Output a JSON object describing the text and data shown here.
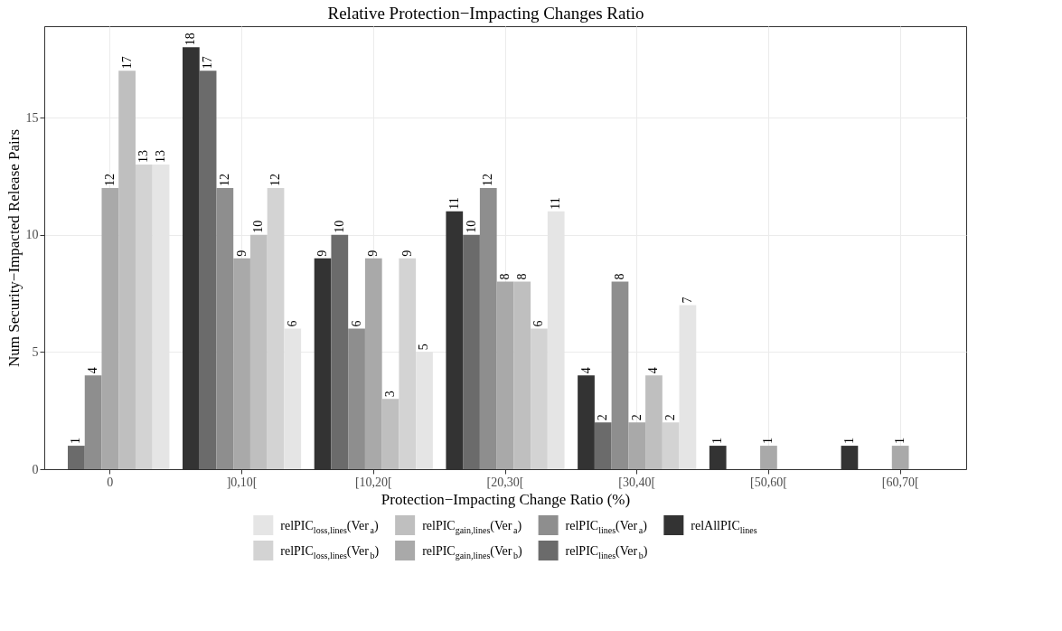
{
  "chart_data": {
    "type": "bar",
    "title": "Relative Protection−Impacting Changes Ratio",
    "xlabel": "Protection−Impacting Change Ratio (%)",
    "ylabel": "Num Security−Impacted Release Pairs",
    "categories": [
      "0",
      "]0,10[",
      "[10,20[",
      "[20,30[",
      "[30,40[",
      "[50,60[",
      "[60,70["
    ],
    "series": [
      {
        "name": "relAllPIC$_{lines}$",
        "color": "#333333",
        "values": [
          null,
          18,
          9,
          11,
          4,
          1,
          1
        ]
      },
      {
        "name": "relPIC$_{lines}$(Ver$_{b}$)",
        "color": "#6b6b6b",
        "values": [
          1,
          17,
          10,
          10,
          2,
          null,
          null
        ]
      },
      {
        "name": "relPIC$_{lines}$(Ver$_{a}$)",
        "color": "#8e8e8e",
        "values": [
          4,
          12,
          6,
          12,
          8,
          null,
          null
        ]
      },
      {
        "name": "relPIC$_{gain,lines}$(Ver$_{b}$)",
        "color": "#a9a9a9",
        "values": [
          12,
          9,
          9,
          8,
          2,
          1,
          1
        ]
      },
      {
        "name": "relPIC$_{gain,lines}$(Ver$_{a}$)",
        "color": "#bfbfbf",
        "values": [
          17,
          10,
          3,
          8,
          4,
          null,
          null
        ]
      },
      {
        "name": "relPIC$_{loss,lines}$(Ver$_{b}$)",
        "color": "#d3d3d3",
        "values": [
          13,
          12,
          9,
          6,
          2,
          null,
          null
        ]
      },
      {
        "name": "relPIC$_{loss,lines}$(Ver$_{a}$)",
        "color": "#e5e5e5",
        "values": [
          13,
          6,
          5,
          11,
          7,
          null,
          null
        ]
      }
    ],
    "ylim": [
      0,
      18.9
    ],
    "yticks": [
      0,
      5,
      10,
      15
    ],
    "grid": true,
    "legend": "bottom",
    "data_labels": true
  }
}
